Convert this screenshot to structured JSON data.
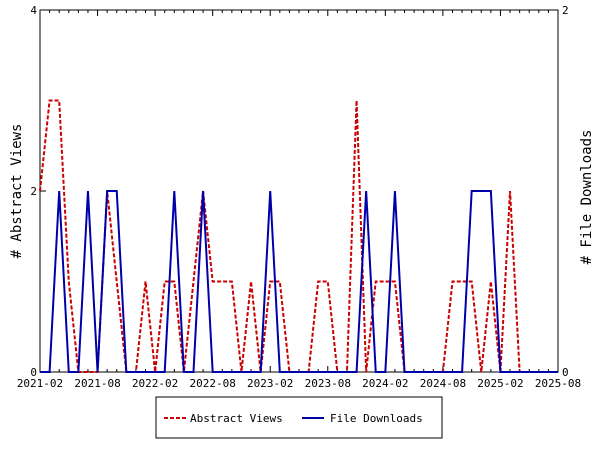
{
  "chart_data": {
    "type": "line",
    "title": "",
    "x_tick_labels": [
      "2021-02",
      "2021-08",
      "2022-02",
      "2022-08",
      "2023-02",
      "2023-08",
      "2024-02",
      "2024-08",
      "2025-02",
      "2025-08"
    ],
    "x_range": [
      "2021-02",
      "2025-08"
    ],
    "y_left": {
      "label": "# Abstract Views",
      "ticks": [
        "0",
        "2",
        "4"
      ],
      "range": [
        0,
        4
      ]
    },
    "y_right": {
      "label": "# File Downloads",
      "ticks": [
        "0",
        "2"
      ],
      "range": [
        0,
        2
      ]
    },
    "grid": false,
    "legend_position": "bottom-center",
    "months": [
      "2021-02",
      "2021-03",
      "2021-04",
      "2021-05",
      "2021-06",
      "2021-07",
      "2021-08",
      "2021-09",
      "2021-10",
      "2021-11",
      "2021-12",
      "2022-01",
      "2022-02",
      "2022-03",
      "2022-04",
      "2022-05",
      "2022-06",
      "2022-07",
      "2022-08",
      "2022-09",
      "2022-10",
      "2022-11",
      "2022-12",
      "2023-01",
      "2023-02",
      "2023-03",
      "2023-04",
      "2023-05",
      "2023-06",
      "2023-07",
      "2023-08",
      "2023-09",
      "2023-10",
      "2023-11",
      "2023-12",
      "2024-01",
      "2024-02",
      "2024-03",
      "2024-04",
      "2024-05",
      "2024-06",
      "2024-07",
      "2024-08",
      "2024-09",
      "2024-10",
      "2024-11",
      "2024-12",
      "2025-01",
      "2025-02",
      "2025-03",
      "2025-04",
      "2025-05",
      "2025-06",
      "2025-07",
      "2025-08"
    ],
    "series": [
      {
        "name": "Abstract Views",
        "axis": "left",
        "color": "#cc0000",
        "dash": "dashed",
        "values": [
          2,
          3,
          3,
          1,
          0,
          0,
          0,
          2,
          1,
          0,
          0,
          1,
          0,
          1,
          1,
          0,
          1,
          2,
          1,
          1,
          1,
          0,
          1,
          0,
          1,
          1,
          0,
          0,
          0,
          1,
          1,
          0,
          0,
          3,
          0,
          1,
          1,
          1,
          0,
          0,
          0,
          0,
          0,
          1,
          1,
          1,
          0,
          1,
          0,
          2,
          0,
          0,
          0,
          0,
          0
        ]
      },
      {
        "name": "File Downloads",
        "axis": "right",
        "color": "#0000aa",
        "dash": "solid",
        "values": [
          0,
          0,
          1,
          0,
          0,
          1,
          0,
          1,
          1,
          0,
          0,
          0,
          0,
          0,
          1,
          0,
          0,
          1,
          0,
          0,
          0,
          0,
          0,
          0,
          1,
          0,
          0,
          0,
          0,
          0,
          0,
          0,
          0,
          0,
          1,
          0,
          0,
          1,
          0,
          0,
          0,
          0,
          0,
          0,
          0,
          1,
          1,
          1,
          0,
          0,
          0,
          0,
          0,
          0,
          0
        ]
      }
    ]
  }
}
